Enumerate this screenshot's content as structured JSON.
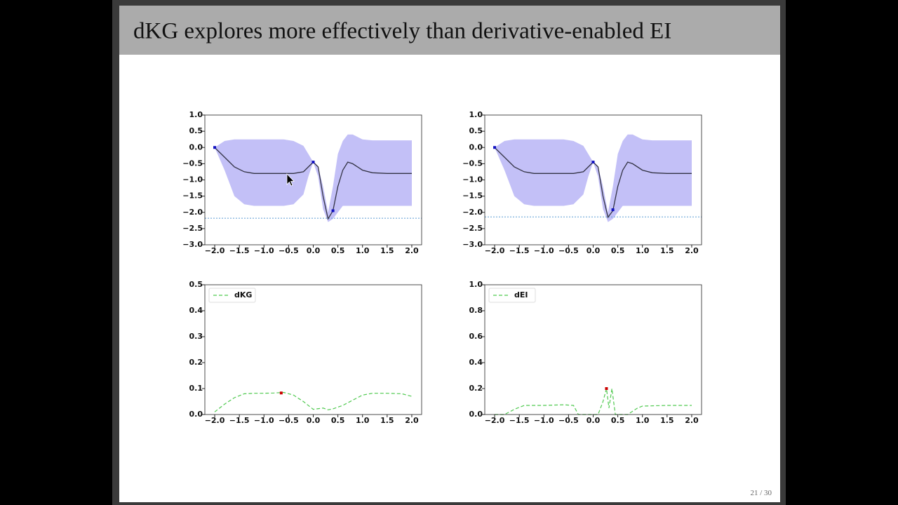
{
  "slide": {
    "title": "dKG explores more effectively than derivative-enabled EI",
    "page_number": "21 / 30"
  },
  "chart_data": [
    {
      "type": "line",
      "xlim": [
        -2.2,
        2.2
      ],
      "ylim": [
        -3,
        1
      ],
      "xticks": [
        {
          "value": -2,
          "label": "−2.0"
        },
        {
          "value": -1.5,
          "label": "−1.5"
        },
        {
          "value": -1,
          "label": "−1.0"
        },
        {
          "value": -0.5,
          "label": "−0.5"
        },
        {
          "value": 0,
          "label": "0.0"
        },
        0.5,
        {
          "value": 1,
          "label": "1.0"
        },
        1.5,
        {
          "value": 2,
          "label": "2.0"
        }
      ],
      "yticks": [
        {
          "value": 1,
          "label": "1.0"
        },
        0.5,
        {
          "value": 0,
          "label": "0.0"
        },
        {
          "value": -0.5,
          "label": "−0.5"
        },
        {
          "value": -1,
          "label": "−1.0"
        },
        {
          "value": -1.5,
          "label": "−1.5"
        },
        {
          "value": -2,
          "label": "−2.0"
        },
        {
          "value": -2.5,
          "label": "−2.5"
        },
        {
          "value": -3,
          "label": "−3.0"
        }
      ],
      "x": [
        -2.0,
        -1.8,
        -1.6,
        -1.4,
        -1.2,
        -1.0,
        -0.8,
        -0.6,
        -0.4,
        -0.2,
        -0.1,
        0.0,
        0.1,
        0.2,
        0.3,
        0.4,
        0.5,
        0.6,
        0.7,
        0.8,
        1.0,
        1.2,
        1.5,
        2.0
      ],
      "band": {
        "color": "#c3c0f7",
        "upper": [
          0,
          0.2,
          0.25,
          0.25,
          0.25,
          0.25,
          0.25,
          0.25,
          0.2,
          0.05,
          -0.2,
          -0.45,
          -0.6,
          -1.2,
          -2.0,
          -1.2,
          -0.2,
          0.2,
          0.4,
          0.4,
          0.25,
          0.22,
          0.22,
          0.22
        ],
        "lower": [
          0,
          -0.7,
          -1.5,
          -1.75,
          -1.8,
          -1.8,
          -1.8,
          -1.8,
          -1.75,
          -1.45,
          -0.9,
          -0.45,
          -0.9,
          -1.9,
          -2.3,
          -2.2,
          -2.0,
          -1.8,
          -1.8,
          -1.8,
          -1.8,
          -1.8,
          -1.8,
          -1.8
        ]
      },
      "line": {
        "color": "#333344",
        "values": [
          0,
          -0.3,
          -0.6,
          -0.75,
          -0.8,
          -0.8,
          -0.8,
          -0.8,
          -0.8,
          -0.75,
          -0.6,
          -0.45,
          -0.6,
          -1.5,
          -2.2,
          -1.95,
          -1.2,
          -0.7,
          -0.45,
          -0.5,
          -0.7,
          -0.78,
          -0.8,
          -0.8
        ]
      },
      "points": {
        "color": "#1010c0",
        "x": [
          -2.0,
          0.0,
          0.4
        ],
        "y": [
          0,
          -0.45,
          -1.95
        ]
      },
      "hline": {
        "value": -2.18,
        "color": "#5a9bd4"
      }
    },
    {
      "type": "line",
      "xlim": [
        -2.2,
        2.2
      ],
      "ylim": [
        -3,
        1
      ],
      "xticks": [
        {
          "value": -2,
          "label": "−2.0"
        },
        {
          "value": -1.5,
          "label": "−1.5"
        },
        {
          "value": -1,
          "label": "−1.0"
        },
        {
          "value": -0.5,
          "label": "−0.5"
        },
        {
          "value": 0,
          "label": "0.0"
        },
        0.5,
        {
          "value": 1,
          "label": "1.0"
        },
        1.5,
        {
          "value": 2,
          "label": "2.0"
        }
      ],
      "yticks": [
        {
          "value": 1,
          "label": "1.0"
        },
        0.5,
        {
          "value": 0,
          "label": "0.0"
        },
        {
          "value": -0.5,
          "label": "−0.5"
        },
        {
          "value": -1,
          "label": "−1.0"
        },
        {
          "value": -1.5,
          "label": "−1.5"
        },
        {
          "value": -2,
          "label": "−2.0"
        },
        {
          "value": -2.5,
          "label": "−2.5"
        },
        {
          "value": -3,
          "label": "−3.0"
        }
      ],
      "x": [
        -2.0,
        -1.8,
        -1.6,
        -1.4,
        -1.2,
        -1.0,
        -0.8,
        -0.6,
        -0.4,
        -0.2,
        -0.1,
        0.0,
        0.1,
        0.2,
        0.3,
        0.4,
        0.5,
        0.6,
        0.7,
        0.8,
        1.0,
        1.2,
        1.5,
        2.0
      ],
      "band": {
        "color": "#c3c0f7",
        "upper": [
          0,
          0.2,
          0.25,
          0.25,
          0.25,
          0.25,
          0.25,
          0.25,
          0.2,
          0.05,
          -0.2,
          -0.45,
          -0.6,
          -1.2,
          -2.0,
          -1.2,
          -0.2,
          0.2,
          0.4,
          0.4,
          0.25,
          0.22,
          0.22,
          0.22
        ],
        "lower": [
          0,
          -0.7,
          -1.5,
          -1.75,
          -1.8,
          -1.8,
          -1.8,
          -1.8,
          -1.75,
          -1.45,
          -0.9,
          -0.45,
          -0.9,
          -1.9,
          -2.3,
          -2.2,
          -2.0,
          -1.8,
          -1.8,
          -1.8,
          -1.8,
          -1.8,
          -1.8,
          -1.8
        ]
      },
      "line": {
        "color": "#333344",
        "values": [
          0,
          -0.3,
          -0.6,
          -0.75,
          -0.8,
          -0.8,
          -0.8,
          -0.8,
          -0.8,
          -0.75,
          -0.6,
          -0.45,
          -0.6,
          -1.5,
          -2.15,
          -1.95,
          -1.2,
          -0.7,
          -0.45,
          -0.5,
          -0.7,
          -0.78,
          -0.8,
          -0.8
        ]
      },
      "points": {
        "color": "#1010c0",
        "x": [
          -2.0,
          0.0,
          0.4
        ],
        "y": [
          0,
          -0.45,
          -1.92
        ]
      },
      "hline": {
        "value": -2.14,
        "color": "#5a9bd4"
      }
    },
    {
      "type": "line",
      "xlim": [
        -2.2,
        2.2
      ],
      "ylim": [
        0,
        0.5
      ],
      "legend": "upper left",
      "xticks": [
        {
          "value": -2,
          "label": "−2.0"
        },
        {
          "value": -1.5,
          "label": "−1.5"
        },
        {
          "value": -1,
          "label": "−1.0"
        },
        {
          "value": -0.5,
          "label": "−0.5"
        },
        {
          "value": 0,
          "label": "0.0"
        },
        0.5,
        {
          "value": 1,
          "label": "1.0"
        },
        1.5,
        {
          "value": 2,
          "label": "2.0"
        }
      ],
      "yticks": [
        {
          "value": 0,
          "label": "0.0"
        },
        0.1,
        0.2,
        0.3,
        0.4,
        0.5
      ],
      "series": [
        {
          "name": "dKG",
          "color": "#4fc94f",
          "x": [
            -2.0,
            -1.8,
            -1.6,
            -1.4,
            -1.2,
            -1.0,
            -0.8,
            -0.6,
            -0.4,
            -0.2,
            0.0,
            0.2,
            0.3,
            0.4,
            0.6,
            0.8,
            1.0,
            1.2,
            1.5,
            1.8,
            2.0
          ],
          "values": [
            0.01,
            0.04,
            0.065,
            0.08,
            0.082,
            0.082,
            0.083,
            0.085,
            0.075,
            0.05,
            0.02,
            0.025,
            0.018,
            0.022,
            0.035,
            0.055,
            0.075,
            0.082,
            0.082,
            0.08,
            0.07
          ]
        }
      ],
      "points": {
        "color": "#cc0000",
        "x": [
          -0.65
        ],
        "y": [
          0.083
        ]
      }
    },
    {
      "type": "line",
      "xlim": [
        -2.2,
        2.2
      ],
      "ylim": [
        0,
        1
      ],
      "legend": "upper left",
      "xticks": [
        {
          "value": -2,
          "label": "−2.0"
        },
        {
          "value": -1.5,
          "label": "−1.5"
        },
        {
          "value": -1,
          "label": "−1.0"
        },
        {
          "value": -0.5,
          "label": "−0.5"
        },
        {
          "value": 0,
          "label": "0.0"
        },
        0.5,
        {
          "value": 1,
          "label": "1.0"
        },
        1.5,
        {
          "value": 2,
          "label": "2.0"
        }
      ],
      "yticks": [
        {
          "value": 0,
          "label": "0.0"
        },
        0.2,
        0.4,
        0.6,
        0.8,
        {
          "value": 1,
          "label": "1.0"
        }
      ],
      "series": [
        {
          "name": "dEI",
          "color": "#4fc94f",
          "x": [
            -2.0,
            -1.8,
            -1.6,
            -1.4,
            -1.0,
            -0.6,
            -0.4,
            -0.3,
            0.1,
            0.2,
            0.27,
            0.32,
            0.38,
            0.45,
            0.7,
            0.9,
            1.0,
            1.5,
            2.0
          ],
          "values": [
            0,
            0,
            0.04,
            0.07,
            0.07,
            0.075,
            0.07,
            0,
            0,
            0.1,
            0.2,
            0.05,
            0.2,
            0,
            0,
            0.05,
            0.065,
            0.07,
            0.07
          ]
        }
      ],
      "points": {
        "color": "#cc0000",
        "x": [
          0.27
        ],
        "y": [
          0.2
        ]
      }
    }
  ]
}
